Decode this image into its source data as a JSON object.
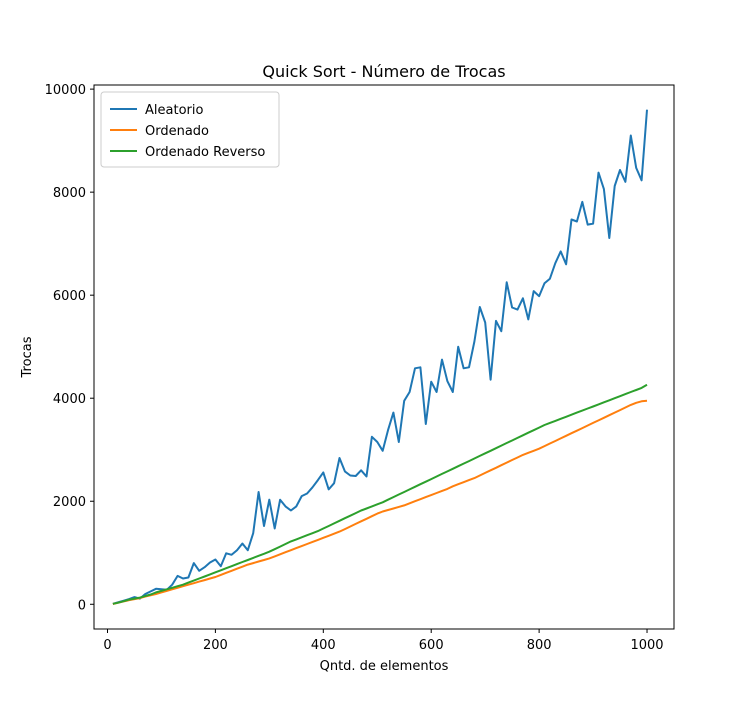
{
  "chart_data": {
    "type": "line",
    "title": "Quick Sort - Número de Trocas",
    "xlabel": "Qntd. de elementos",
    "ylabel": "Trocas",
    "xlim": [
      -25,
      1050
    ],
    "ylim": [
      -480,
      10080
    ],
    "xticks": [
      0,
      200,
      400,
      600,
      800,
      1000
    ],
    "yticks": [
      0,
      2000,
      4000,
      6000,
      8000,
      10000
    ],
    "grid": false,
    "legend_position": "top-left",
    "x": [
      10,
      20,
      30,
      40,
      50,
      60,
      70,
      80,
      90,
      100,
      110,
      120,
      130,
      140,
      150,
      160,
      170,
      180,
      190,
      200,
      210,
      220,
      230,
      240,
      250,
      260,
      270,
      280,
      290,
      300,
      310,
      320,
      330,
      340,
      350,
      360,
      370,
      380,
      390,
      400,
      410,
      420,
      430,
      440,
      450,
      460,
      470,
      480,
      490,
      500,
      510,
      520,
      530,
      540,
      550,
      560,
      570,
      580,
      590,
      600,
      610,
      620,
      630,
      640,
      650,
      660,
      670,
      680,
      690,
      700,
      710,
      720,
      730,
      740,
      750,
      760,
      770,
      780,
      790,
      800,
      810,
      820,
      830,
      840,
      850,
      860,
      870,
      880,
      890,
      900,
      910,
      920,
      930,
      940,
      950,
      960,
      970,
      980,
      990,
      1000
    ],
    "series": [
      {
        "name": "Aleatorio",
        "color": "#1f77b4",
        "values": [
          10,
          40,
          70,
          100,
          140,
          110,
          200,
          250,
          300,
          290,
          280,
          380,
          550,
          500,
          520,
          800,
          650,
          720,
          810,
          870,
          740,
          990,
          960,
          1050,
          1180,
          1050,
          1380,
          2180,
          1520,
          2030,
          1470,
          2030,
          1900,
          1820,
          1900,
          2100,
          2150,
          2270,
          2410,
          2560,
          2230,
          2350,
          2840,
          2580,
          2500,
          2490,
          2600,
          2480,
          3250,
          3150,
          2980,
          3380,
          3720,
          3150,
          3950,
          4120,
          4580,
          4600,
          3500,
          4320,
          4120,
          4750,
          4330,
          4120,
          5000,
          4580,
          4600,
          5100,
          5770,
          5470,
          4360,
          5500,
          5300,
          6250,
          5760,
          5720,
          5940,
          5530,
          6080,
          5980,
          6230,
          6320,
          6620,
          6850,
          6600,
          7470,
          7430,
          7810,
          7370,
          7390,
          8380,
          8060,
          7110,
          8120,
          8430,
          8200,
          9100,
          8470,
          8230,
          9600
        ]
      },
      {
        "name": "Ordenado",
        "color": "#ff7f0e",
        "values": [
          5,
          30,
          55,
          80,
          100,
          120,
          150,
          175,
          200,
          230,
          260,
          290,
          320,
          350,
          380,
          410,
          440,
          470,
          500,
          530,
          570,
          610,
          650,
          690,
          730,
          770,
          800,
          830,
          860,
          890,
          930,
          970,
          1010,
          1050,
          1090,
          1130,
          1170,
          1210,
          1250,
          1290,
          1330,
          1370,
          1410,
          1460,
          1510,
          1560,
          1610,
          1660,
          1710,
          1760,
          1800,
          1830,
          1860,
          1890,
          1920,
          1960,
          2000,
          2040,
          2080,
          2120,
          2160,
          2200,
          2240,
          2290,
          2330,
          2370,
          2410,
          2450,
          2500,
          2550,
          2600,
          2650,
          2700,
          2750,
          2800,
          2850,
          2900,
          2940,
          2980,
          3020,
          3070,
          3120,
          3170,
          3220,
          3270,
          3320,
          3370,
          3420,
          3470,
          3520,
          3570,
          3620,
          3670,
          3720,
          3770,
          3820,
          3870,
          3910,
          3940,
          3950
        ]
      },
      {
        "name": "Ordenado Reverso",
        "color": "#2ca02c",
        "values": [
          10,
          30,
          60,
          90,
          110,
          130,
          160,
          190,
          230,
          260,
          290,
          320,
          350,
          380,
          420,
          460,
          500,
          540,
          580,
          620,
          660,
          700,
          740,
          780,
          820,
          860,
          900,
          940,
          980,
          1020,
          1070,
          1120,
          1170,
          1220,
          1260,
          1300,
          1340,
          1380,
          1420,
          1470,
          1520,
          1570,
          1620,
          1670,
          1720,
          1770,
          1820,
          1860,
          1900,
          1940,
          1980,
          2030,
          2080,
          2130,
          2180,
          2230,
          2280,
          2330,
          2380,
          2430,
          2480,
          2530,
          2580,
          2630,
          2680,
          2730,
          2780,
          2830,
          2880,
          2930,
          2980,
          3030,
          3080,
          3130,
          3180,
          3230,
          3280,
          3330,
          3380,
          3430,
          3480,
          3520,
          3560,
          3600,
          3640,
          3680,
          3720,
          3760,
          3800,
          3840,
          3880,
          3920,
          3960,
          4000,
          4040,
          4080,
          4120,
          4160,
          4200,
          4260
        ]
      }
    ]
  }
}
